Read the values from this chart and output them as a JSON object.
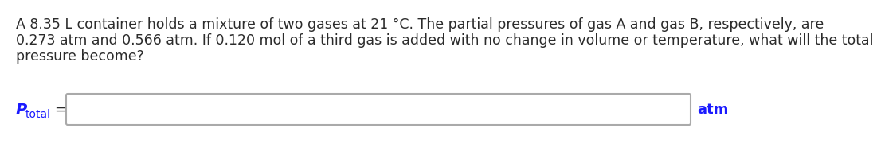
{
  "line1": "A 8.35 L container holds a mixture of two gases at 21 °C. The partial pressures of gas A and gas B, respectively, are",
  "line2": "0.273 atm and 0.566 atm. If 0.120 mol of a third gas is added with no change in volume or temperature, what will the total",
  "line3": "pressure become?",
  "label_P": "P",
  "label_sub": "total",
  "label_equals": "=",
  "label_unit": "atm",
  "text_color": "#2b2b2b",
  "label_color": "#1a1aff",
  "unit_color": "#1a1aff",
  "box_facecolor": "#ffffff",
  "box_edgecolor": "#aaaaaa",
  "background_color": "#ffffff",
  "text_fontsize": 12.5,
  "label_P_fontsize": 14,
  "label_sub_fontsize": 10,
  "label_eq_fontsize": 13,
  "unit_fontsize": 13
}
